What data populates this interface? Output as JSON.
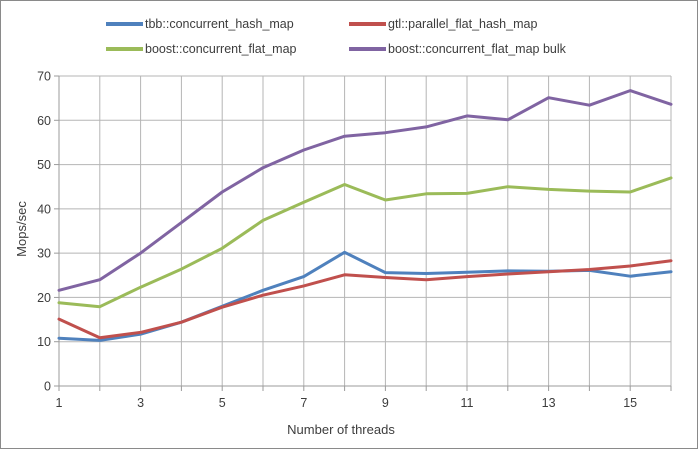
{
  "colors": {
    "background": "#ffffff",
    "frame_border": "#8a8a8a",
    "gridline": "#b5b5b5",
    "axis_line": "#9b9b9b",
    "text": "#3d3d3d"
  },
  "chart_data": {
    "type": "line",
    "title": "",
    "xlabel": "Number of threads",
    "ylabel": "Mops/sec",
    "x": [
      1,
      2,
      3,
      4,
      5,
      6,
      7,
      8,
      9,
      10,
      11,
      12,
      13,
      14,
      15,
      16
    ],
    "xtick_label_values": [
      1,
      3,
      5,
      7,
      9,
      11,
      13,
      15
    ],
    "yticks": [
      0,
      10,
      20,
      30,
      40,
      50,
      60,
      70
    ],
    "ylim": [
      0,
      70
    ],
    "grid": true,
    "legend_position": "top",
    "series": [
      {
        "name": "tbb::concurrent_hash_map",
        "color": "#4F81BD",
        "values": [
          10.8,
          10.3,
          11.7,
          14.4,
          18.0,
          21.6,
          24.7,
          30.2,
          25.6,
          25.4,
          25.7,
          26.0,
          25.9,
          26.1,
          24.8,
          25.8
        ]
      },
      {
        "name": "gtl::parallel_flat_hash_map",
        "color": "#C0504D",
        "values": [
          15.1,
          10.9,
          12.1,
          14.4,
          17.8,
          20.5,
          22.6,
          25.1,
          24.5,
          24.0,
          24.7,
          25.3,
          25.8,
          26.3,
          27.1,
          28.3
        ]
      },
      {
        "name": "boost::concurrent_flat_map",
        "color": "#9BBB59",
        "values": [
          18.8,
          17.9,
          22.3,
          26.4,
          31.1,
          37.4,
          41.5,
          45.5,
          42.0,
          43.4,
          43.5,
          45.0,
          44.4,
          44.0,
          43.8,
          47.0
        ]
      },
      {
        "name": "boost::concurrent_flat_map bulk",
        "color": "#8064A2",
        "values": [
          21.6,
          24.0,
          30.0,
          36.9,
          43.8,
          49.3,
          53.3,
          56.4,
          57.2,
          58.5,
          61.0,
          60.1,
          65.1,
          63.4,
          66.7,
          63.6
        ]
      }
    ]
  }
}
